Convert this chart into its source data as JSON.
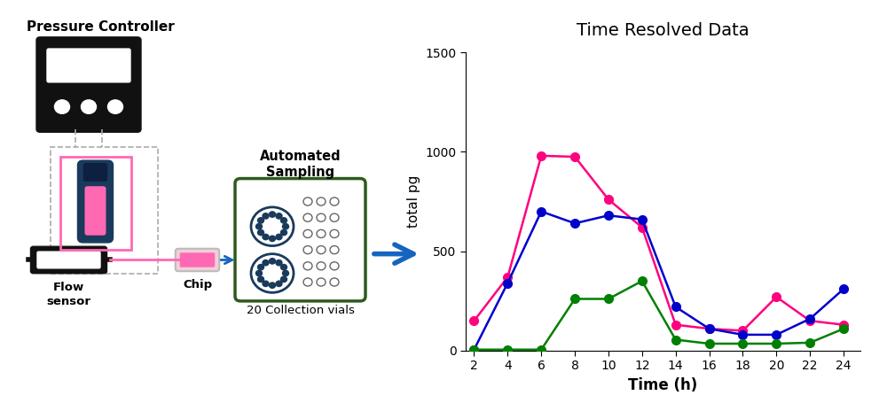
{
  "chart_title": "Time Resolved Data",
  "xlabel": "Time (h)",
  "ylabel": "total pg",
  "x_values": [
    2,
    4,
    6,
    8,
    10,
    12,
    14,
    16,
    18,
    20,
    22,
    24
  ],
  "pink_values": [
    150,
    370,
    980,
    975,
    760,
    620,
    130,
    110,
    100,
    270,
    150,
    130
  ],
  "blue_values": [
    5,
    340,
    700,
    640,
    680,
    660,
    220,
    110,
    80,
    80,
    160,
    310
  ],
  "green_values": [
    5,
    5,
    5,
    260,
    260,
    350,
    55,
    35,
    35,
    35,
    40,
    110
  ],
  "pink_color": "#FF007F",
  "blue_color": "#0000CD",
  "green_color": "#008000",
  "ylim": [
    0,
    1500
  ],
  "yticks": [
    0,
    500,
    1000,
    1500
  ],
  "xticks": [
    2,
    4,
    6,
    8,
    10,
    12,
    14,
    16,
    18,
    20,
    22,
    24
  ],
  "schematic_label_pressure": "Pressure Controller",
  "schematic_label_flow": "Flow\nsensor",
  "schematic_label_chip": "Chip",
  "schematic_label_auto": "Automated\nSampling",
  "schematic_label_vials": "20 Collection vials",
  "bg_color": "#ffffff",
  "controller_color": "#111111",
  "dark_navy": "#1a3a5c",
  "pink_line": "#FF69B4",
  "blue_arrow": "#1565C0",
  "green_border": "#2d5a1b",
  "dashed_gray": "#AAAAAA"
}
